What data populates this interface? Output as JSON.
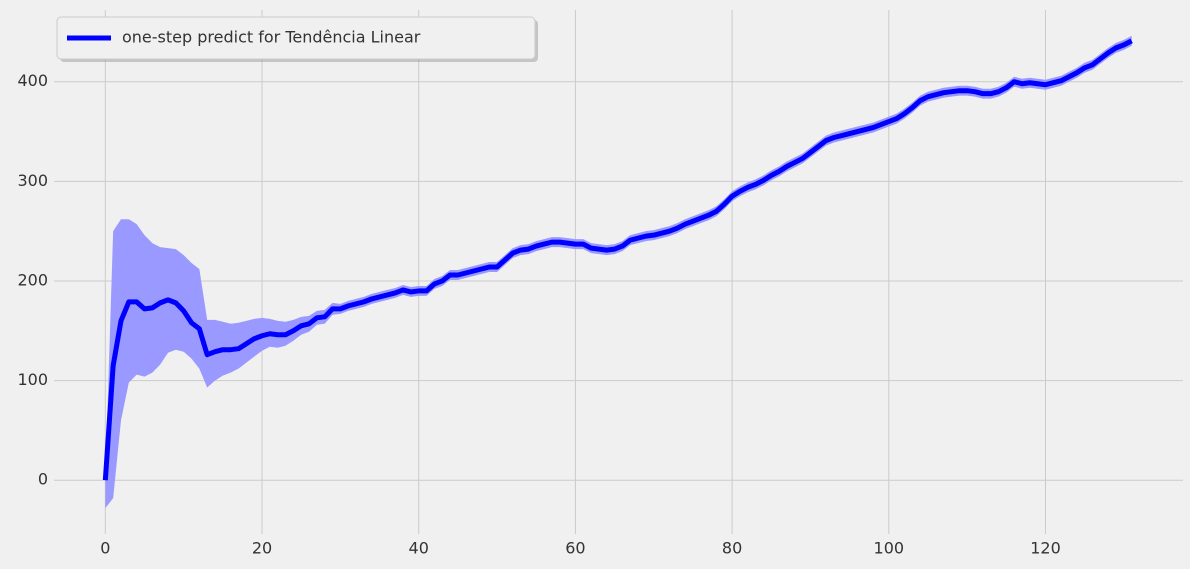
{
  "chart_data": {
    "type": "line",
    "x": [
      0,
      1,
      2,
      3,
      4,
      5,
      6,
      7,
      8,
      9,
      10,
      11,
      12,
      13,
      14,
      15,
      16,
      17,
      18,
      19,
      20,
      21,
      22,
      23,
      24,
      25,
      26,
      27,
      28,
      29,
      30,
      31,
      32,
      33,
      34,
      35,
      36,
      37,
      38,
      39,
      40,
      41,
      42,
      43,
      44,
      45,
      46,
      47,
      48,
      49,
      50,
      51,
      52,
      53,
      54,
      55,
      56,
      57,
      58,
      59,
      60,
      61,
      62,
      63,
      64,
      65,
      66,
      67,
      68,
      69,
      70,
      71,
      72,
      73,
      74,
      75,
      76,
      77,
      78,
      79,
      80,
      81,
      82,
      83,
      84,
      85,
      86,
      87,
      88,
      89,
      90,
      91,
      92,
      93,
      94,
      95,
      96,
      97,
      98,
      99,
      100,
      101,
      102,
      103,
      104,
      105,
      106,
      107,
      108,
      109,
      110,
      111,
      112,
      113,
      114,
      115,
      116,
      117,
      118,
      119,
      120,
      121,
      122,
      123,
      124,
      125,
      126,
      127,
      128,
      129,
      130,
      131
    ],
    "series": [
      {
        "name": "one-step predict for Tendência Linear",
        "color": "#0000ff",
        "values": [
          0,
          115,
          160,
          179,
          179,
          172,
          173,
          178,
          181,
          178,
          170,
          158,
          152,
          126,
          129,
          131,
          131,
          132,
          137,
          142,
          145,
          147,
          146,
          146,
          150,
          155,
          157,
          163,
          164,
          172,
          172,
          175,
          177,
          179,
          182,
          184,
          186,
          188,
          191,
          189,
          190,
          190,
          197,
          200,
          206,
          206,
          208,
          210,
          212,
          214,
          214,
          221,
          228,
          231,
          232,
          235,
          237,
          239,
          239,
          238,
          237,
          237,
          233,
          232,
          231,
          232,
          235,
          241,
          243,
          245,
          246,
          248,
          250,
          253,
          257,
          260,
          263,
          266,
          270,
          277,
          285,
          290,
          294,
          297,
          301,
          306,
          310,
          315,
          319,
          323,
          329,
          335,
          341,
          344,
          346,
          348,
          350,
          352,
          354,
          357,
          360,
          363,
          368,
          374,
          381,
          385,
          387,
          389,
          390,
          391,
          391,
          390,
          388,
          388,
          390,
          394,
          400,
          398,
          399,
          398,
          397,
          399,
          401,
          405,
          409,
          414,
          417,
          423,
          429,
          434,
          437,
          441
        ]
      }
    ],
    "band": {
      "color": "#9999ff",
      "lower": [
        -28,
        -18,
        60,
        98,
        106,
        104,
        108,
        116,
        128,
        131,
        129,
        122,
        112,
        93,
        100,
        105,
        108,
        112,
        118,
        124,
        130,
        134,
        133,
        135,
        140,
        146,
        149,
        156,
        157,
        166,
        167,
        170,
        172,
        174,
        177,
        179,
        181,
        183,
        186,
        184,
        185,
        185,
        192,
        195,
        201,
        201,
        203,
        205,
        207,
        209,
        209,
        216,
        223,
        226,
        227,
        230,
        232,
        234,
        234,
        233,
        232,
        232,
        228,
        227,
        226,
        227,
        230,
        236,
        238,
        240,
        241,
        243,
        245,
        248,
        252,
        255,
        258,
        261,
        265,
        272,
        280,
        285,
        289,
        292,
        296,
        301,
        305,
        310,
        314,
        318,
        324,
        330,
        336,
        339,
        341,
        343,
        345,
        347,
        349,
        352,
        355,
        358,
        363,
        369,
        376,
        380,
        382,
        384,
        385,
        386,
        386,
        385,
        383,
        383,
        385,
        389,
        395,
        393,
        394,
        393,
        392,
        394,
        396,
        400,
        404,
        409,
        412,
        418,
        424,
        429,
        432,
        436
      ],
      "upper": [
        2,
        250,
        262,
        262,
        257,
        246,
        238,
        234,
        233,
        232,
        226,
        218,
        212,
        161,
        161,
        159,
        157,
        158,
        160,
        162,
        163,
        162,
        160,
        159,
        161,
        164,
        165,
        170,
        171,
        178,
        177,
        180,
        182,
        184,
        187,
        189,
        191,
        193,
        196,
        194,
        195,
        195,
        202,
        205,
        211,
        211,
        213,
        215,
        217,
        219,
        219,
        226,
        233,
        236,
        237,
        240,
        242,
        244,
        244,
        243,
        242,
        242,
        238,
        237,
        236,
        237,
        240,
        246,
        248,
        250,
        251,
        253,
        255,
        258,
        262,
        265,
        268,
        271,
        275,
        282,
        290,
        295,
        299,
        302,
        306,
        311,
        315,
        320,
        324,
        328,
        334,
        340,
        346,
        349,
        351,
        353,
        355,
        357,
        359,
        362,
        365,
        368,
        373,
        379,
        386,
        390,
        392,
        394,
        395,
        396,
        396,
        395,
        393,
        393,
        395,
        399,
        405,
        403,
        404,
        403,
        402,
        404,
        406,
        410,
        414,
        419,
        422,
        428,
        434,
        439,
        442,
        446
      ]
    },
    "xlim": [
      -6.55,
      137.55
    ],
    "ylim": [
      -54,
      472
    ],
    "xticks": [
      0,
      20,
      40,
      60,
      80,
      100,
      120
    ],
    "yticks": [
      0,
      100,
      200,
      300,
      400
    ],
    "grid": true,
    "legend": "upper left"
  }
}
